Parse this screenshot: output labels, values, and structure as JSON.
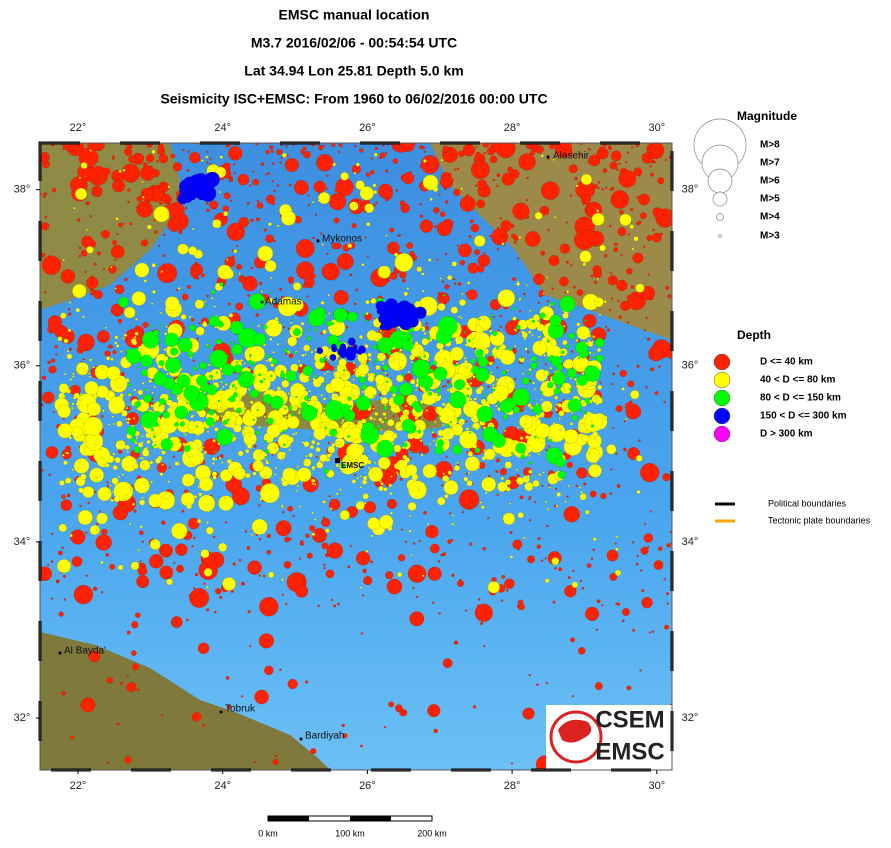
{
  "header": {
    "lines": [
      "EMSC manual location",
      "M3.7  2016/02/06 - 00:54:54 UTC",
      "Lat 34.94    Lon  25.81     Depth  5.0 km",
      "Seismicity ISC+EMSC: From 1960 to 06/02/2016 00:00 UTC"
    ]
  },
  "map": {
    "lonlim": [
      21.475,
      30.21
    ],
    "latlim": [
      31.41,
      38.53
    ],
    "lon_ticks": [
      {
        "value": 22,
        "label": "22°"
      },
      {
        "value": 24,
        "label": "24°"
      },
      {
        "value": 26,
        "label": "26°"
      },
      {
        "value": 28,
        "label": "28°"
      },
      {
        "value": 30,
        "label": "30°"
      }
    ],
    "lat_ticks": [
      {
        "value": 38,
        "label": "38°"
      },
      {
        "value": 36,
        "label": "36°"
      },
      {
        "value": 34,
        "label": "34°"
      },
      {
        "value": 32,
        "label": "32°"
      }
    ],
    "places": [
      "Alasehir",
      "Mykonos",
      "Adamas",
      "Al Bayda'",
      "Tobruk",
      "Bardiyah"
    ],
    "epicenter_label": "EMSC"
  },
  "legend": {
    "magnitude_title": "Magnitude",
    "magnitudes": [
      "M>8",
      "M>7",
      "M>6",
      "M>5",
      "M>4",
      "M>3"
    ],
    "depth_title": "Depth",
    "depths": [
      {
        "label": "D <= 40 km",
        "color": "#ff2200"
      },
      {
        "label": "40 < D <= 80 km",
        "color": "#ffff00"
      },
      {
        "label": "80 < D <= 150 km",
        "color": "#00ff00"
      },
      {
        "label": "150 < D <= 300 km",
        "color": "#0000ff"
      },
      {
        "label": "D > 300 km",
        "color": "#ff00ff"
      }
    ],
    "lines": [
      {
        "label": "Political boundaries",
        "color": "#000000"
      },
      {
        "label": "Tectonic plate boundaries",
        "color": "#ffa500"
      }
    ]
  },
  "scale": {
    "labels": [
      "0 km",
      "100 km",
      "200 km"
    ]
  },
  "logo": {
    "top": "CSEM",
    "bottom": "EMSC"
  }
}
